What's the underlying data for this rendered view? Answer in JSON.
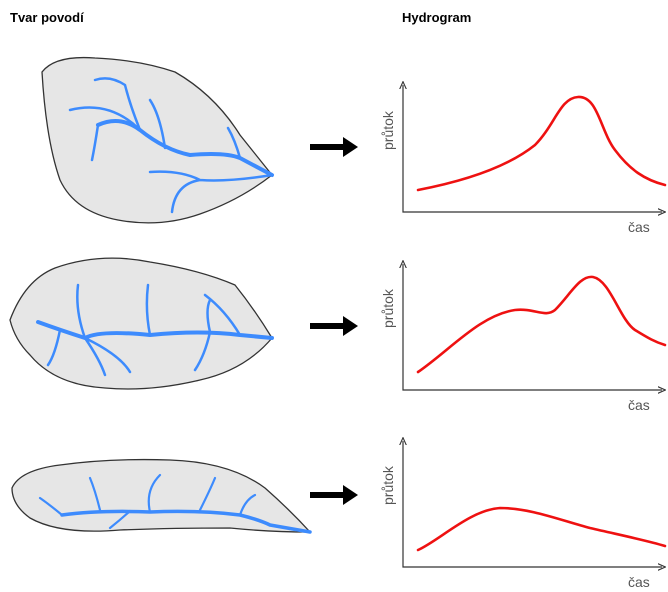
{
  "headers": {
    "left": "Tvar povodí",
    "right": "Hydrogram"
  },
  "rows": [
    {
      "y_label": "průtok",
      "x_label": "čas"
    },
    {
      "y_label": "průtok",
      "x_label": "čas"
    },
    {
      "y_label": "průtok",
      "x_label": "čas"
    }
  ]
}
